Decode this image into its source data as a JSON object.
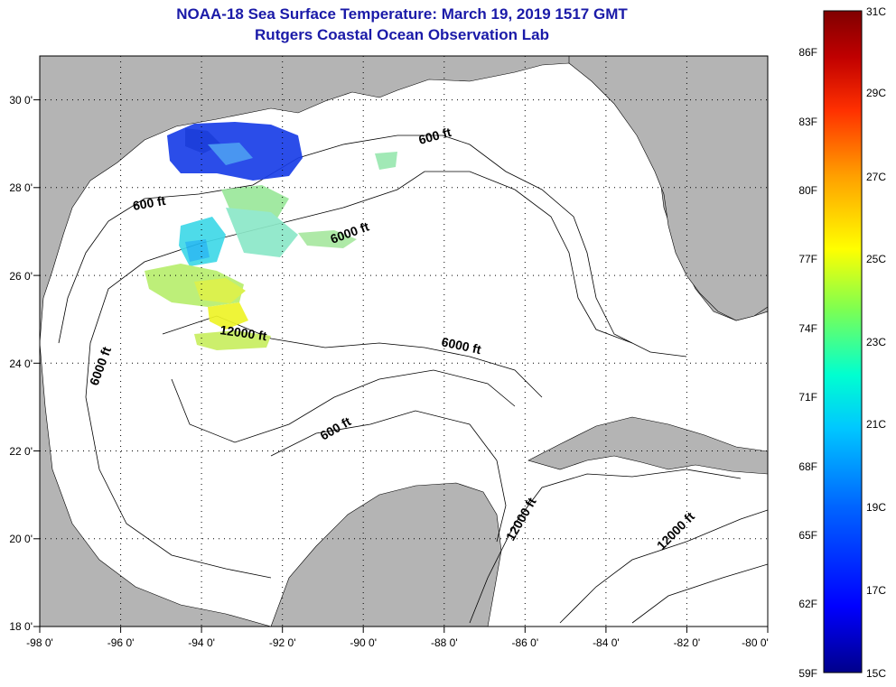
{
  "title": "NOAA-18 Sea Surface Temperature:  March 19, 2019 1517 GMT",
  "subtitle": "Rutgers Coastal Ocean Observation Lab",
  "map": {
    "lon_range": [
      -98,
      -80
    ],
    "lat_range": [
      18,
      31
    ],
    "x_ticks": [
      "-98 0'",
      "-96 0'",
      "-94 0'",
      "-92 0'",
      "-90 0'",
      "-88 0'",
      "-86 0'",
      "-84 0'",
      "-82 0'",
      "-80 0'"
    ],
    "y_ticks": [
      "18 0'",
      "20 0'",
      "22 0'",
      "24 0'",
      "26 0'",
      "28 0'",
      "30 0'"
    ],
    "gridlines": true,
    "land_color": "#b4b4b4",
    "water_color": "#ffffff",
    "contour_labels": [
      "600 ft",
      "600 ft",
      "600 ft",
      "6000 ft",
      "6000 ft",
      "6000 ft",
      "12000 ft",
      "12000 ft",
      "12000 ft"
    ]
  },
  "colorbar": {
    "fahrenheit": [
      "86F",
      "83F",
      "80F",
      "77F",
      "74F",
      "71F",
      "68F",
      "65F",
      "62F",
      "59F"
    ],
    "celsius": [
      "31C",
      "29C",
      "27C",
      "25C",
      "23C",
      "21C",
      "19C",
      "17C",
      "15C"
    ],
    "range_c": [
      15,
      31
    ],
    "colors": [
      "#00008b",
      "#0000ff",
      "#0064ff",
      "#00c8ff",
      "#00ffd0",
      "#7fff50",
      "#ffff00",
      "#ffa000",
      "#ff3000",
      "#c00000",
      "#800000"
    ]
  }
}
